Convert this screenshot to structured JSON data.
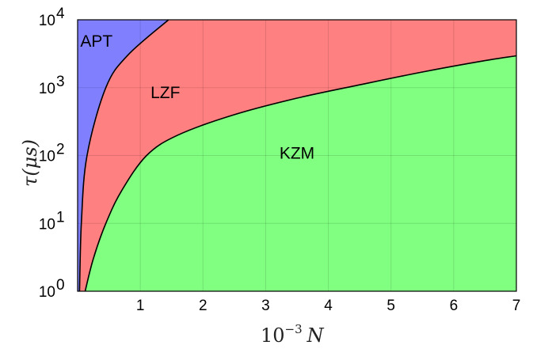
{
  "chart_data": {
    "type": "area",
    "x_axis": {
      "label_base": "10",
      "label_exp": "−3",
      "label_var": "N",
      "range": [
        0,
        7
      ],
      "ticks": [
        "1",
        "2",
        "3",
        "4",
        "5",
        "6",
        "7"
      ]
    },
    "y_axis": {
      "label": "τ(μs)",
      "scale": "log",
      "range": [
        1,
        10000
      ],
      "ticks": [
        {
          "value": 1,
          "base": "10",
          "exp": "0"
        },
        {
          "value": 10,
          "base": "10",
          "exp": "1"
        },
        {
          "value": 100,
          "base": "10",
          "exp": "2"
        },
        {
          "value": 1000,
          "base": "10",
          "exp": "3"
        },
        {
          "value": 10000,
          "base": "10",
          "exp": "4"
        }
      ]
    },
    "grid": true,
    "regions": [
      {
        "name": "APT",
        "color": "#8080ff"
      },
      {
        "name": "LZF",
        "color": "#ff8080"
      },
      {
        "name": "KZM",
        "color": "#80ff80"
      }
    ],
    "boundaries": [
      {
        "between": [
          "APT",
          "LZF"
        ],
        "points": [
          [
            0.03,
            1
          ],
          [
            0.06,
            10
          ],
          [
            0.15,
            100
          ],
          [
            0.45,
            1000
          ],
          [
            0.8,
            3000
          ],
          [
            1.45,
            10000
          ]
        ]
      },
      {
        "between": [
          "LZF",
          "KZM"
        ],
        "points": [
          [
            0.12,
            1
          ],
          [
            0.25,
            3
          ],
          [
            0.45,
            10
          ],
          [
            0.7,
            30
          ],
          [
            1.1,
            100
          ],
          [
            1.6,
            200
          ],
          [
            2.5,
            400
          ],
          [
            3.5,
            700
          ],
          [
            4.5,
            1100
          ],
          [
            5.5,
            1700
          ],
          [
            6.5,
            2500
          ],
          [
            7,
            2950
          ]
        ]
      }
    ]
  }
}
